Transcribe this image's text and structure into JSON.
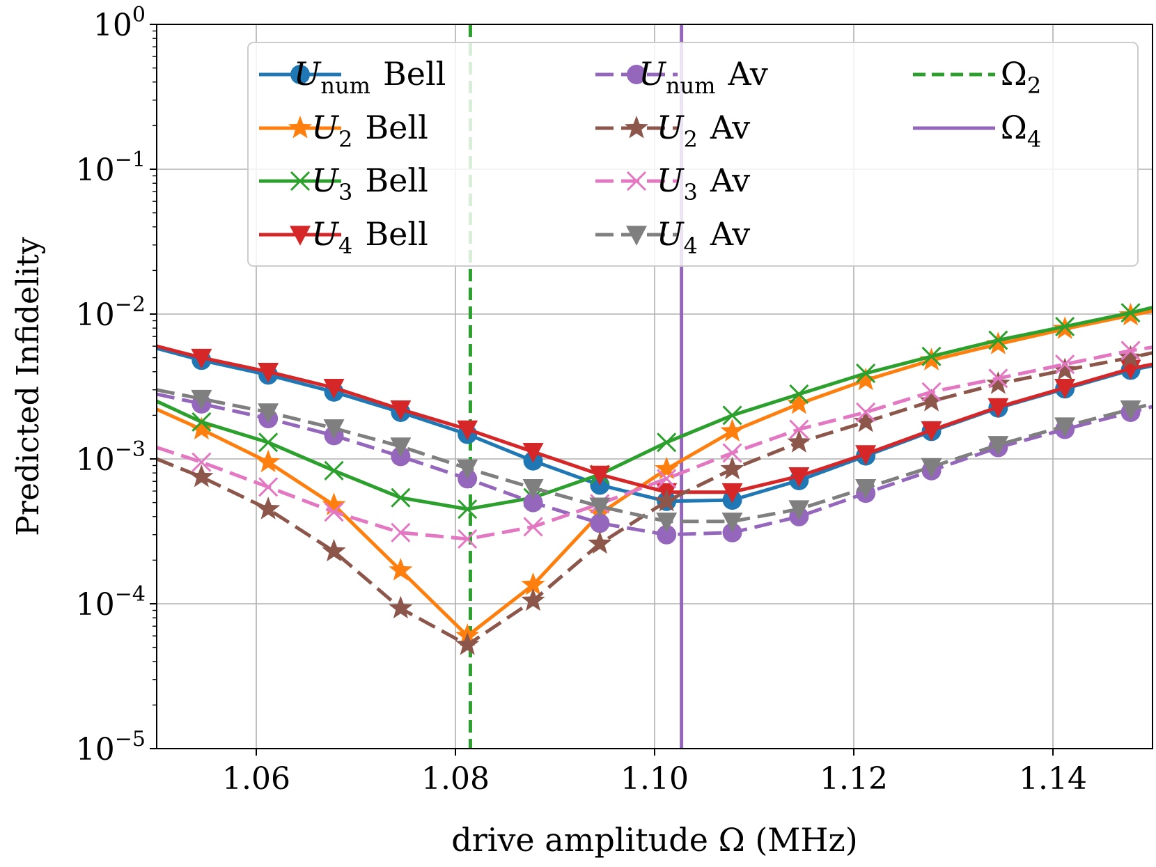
{
  "chart_data": {
    "type": "line",
    "y_scale": "log",
    "xlabel": "drive amplitude Ω (MHz)",
    "ylabel": "Predicted Infidelity",
    "xlim": [
      1.05,
      1.15
    ],
    "ylim": [
      1e-05,
      1
    ],
    "grid": true,
    "legend_position": "top-right",
    "x_ticks": [
      {
        "value": 1.06,
        "label": "1.06"
      },
      {
        "value": 1.08,
        "label": "1.08"
      },
      {
        "value": 1.1,
        "label": "1.10"
      },
      {
        "value": 1.12,
        "label": "1.12"
      },
      {
        "value": 1.14,
        "label": "1.14"
      }
    ],
    "y_ticks": [
      {
        "value": 1e-05,
        "base": "10",
        "exp": "−5"
      },
      {
        "value": 0.0001,
        "base": "10",
        "exp": "−4"
      },
      {
        "value": 0.001,
        "base": "10",
        "exp": "−3"
      },
      {
        "value": 0.01,
        "base": "10",
        "exp": "−2"
      },
      {
        "value": 0.1,
        "base": "10",
        "exp": "−1"
      },
      {
        "value": 1,
        "base": "10",
        "exp": "0"
      }
    ],
    "x": [
      1.05,
      1.0545,
      1.0612,
      1.0678,
      1.0745,
      1.0812,
      1.0878,
      1.0945,
      1.1012,
      1.1078,
      1.1145,
      1.1212,
      1.1278,
      1.1345,
      1.1412,
      1.1478,
      1.15
    ],
    "series": [
      {
        "name": "U_num Bell",
        "sym": "U",
        "sub": "num",
        "suffix": "Bell",
        "color": "#1f77b4",
        "dash": "solid",
        "marker": "circle",
        "values": [
          0.0058,
          0.0048,
          0.0038,
          0.0029,
          0.0021,
          0.00148,
          0.00097,
          0.00066,
          0.00051,
          0.00052,
          0.00071,
          0.00105,
          0.00155,
          0.00225,
          0.00305,
          0.0041,
          0.0044
        ]
      },
      {
        "name": "U_2 Bell",
        "sym": "U",
        "sub": "2",
        "suffix": "Bell",
        "color": "#ff7f0e",
        "dash": "solid",
        "marker": "star",
        "values": [
          0.0022,
          0.0016,
          0.00095,
          0.00048,
          0.00017,
          6e-05,
          0.000135,
          0.00042,
          0.00085,
          0.00155,
          0.0024,
          0.0035,
          0.0048,
          0.0062,
          0.0079,
          0.0098,
          0.0105
        ]
      },
      {
        "name": "U_3 Bell",
        "sym": "U",
        "sub": "3",
        "suffix": "Bell",
        "color": "#2ca02c",
        "dash": "solid",
        "marker": "x",
        "values": [
          0.0025,
          0.0018,
          0.0013,
          0.00083,
          0.00054,
          0.00045,
          0.00054,
          0.00078,
          0.0013,
          0.002,
          0.0028,
          0.0039,
          0.0051,
          0.0066,
          0.0082,
          0.0102,
          0.0111
        ]
      },
      {
        "name": "U_4 Bell",
        "sym": "U",
        "sub": "4",
        "suffix": "Bell",
        "color": "#d62728",
        "dash": "solid",
        "marker": "triangle-down",
        "values": [
          0.006,
          0.005,
          0.004,
          0.0031,
          0.0022,
          0.0016,
          0.00112,
          0.00078,
          0.00059,
          0.00059,
          0.00076,
          0.00108,
          0.00158,
          0.00228,
          0.0031,
          0.0042,
          0.0045
        ]
      },
      {
        "name": "U_num Av",
        "sym": "U",
        "sub": "num",
        "suffix": "Av",
        "color": "#9467bd",
        "dash": "dashed",
        "marker": "circle",
        "values": [
          0.0028,
          0.0024,
          0.0019,
          0.00145,
          0.00104,
          0.00073,
          0.0005,
          0.00036,
          0.0003,
          0.00031,
          0.0004,
          0.00058,
          0.00083,
          0.0012,
          0.0016,
          0.0021,
          0.0023
        ]
      },
      {
        "name": "U_2 Av",
        "sym": "U",
        "sub": "2",
        "suffix": "Av",
        "color": "#8c564b",
        "dash": "dashed",
        "marker": "star",
        "values": [
          0.001,
          0.00075,
          0.00045,
          0.00023,
          9.3e-05,
          5.2e-05,
          0.000105,
          0.00026,
          0.00051,
          0.00085,
          0.0013,
          0.0018,
          0.0025,
          0.0033,
          0.0041,
          0.005,
          0.0054
        ]
      },
      {
        "name": "U_3 Av",
        "sym": "U",
        "sub": "3",
        "suffix": "Av",
        "color": "#e377c2",
        "dash": "dashed",
        "marker": "x",
        "values": [
          0.0012,
          0.00095,
          0.00064,
          0.00043,
          0.00031,
          0.00028,
          0.00034,
          0.00049,
          0.00073,
          0.0011,
          0.0016,
          0.0021,
          0.0029,
          0.0036,
          0.0045,
          0.0056,
          0.0059
        ]
      },
      {
        "name": "U_4 Av",
        "sym": "U",
        "sub": "4",
        "suffix": "Av",
        "color": "#7f7f7f",
        "dash": "dashed",
        "marker": "triangle-down",
        "values": [
          0.003,
          0.0026,
          0.0021,
          0.00163,
          0.00122,
          0.00086,
          0.00063,
          0.00047,
          0.00037,
          0.00037,
          0.00045,
          0.00063,
          0.00088,
          0.00125,
          0.00168,
          0.0022,
          0.0024
        ]
      }
    ],
    "vlines": [
      {
        "name": "Ω_2",
        "sym": "Ω",
        "sub": "2",
        "x": 1.0815,
        "color": "#2ca02c",
        "dash": "dashed"
      },
      {
        "name": "Ω_4",
        "sym": "Ω",
        "sub": "4",
        "x": 1.1027,
        "color": "#9467bd",
        "dash": "solid"
      }
    ]
  }
}
